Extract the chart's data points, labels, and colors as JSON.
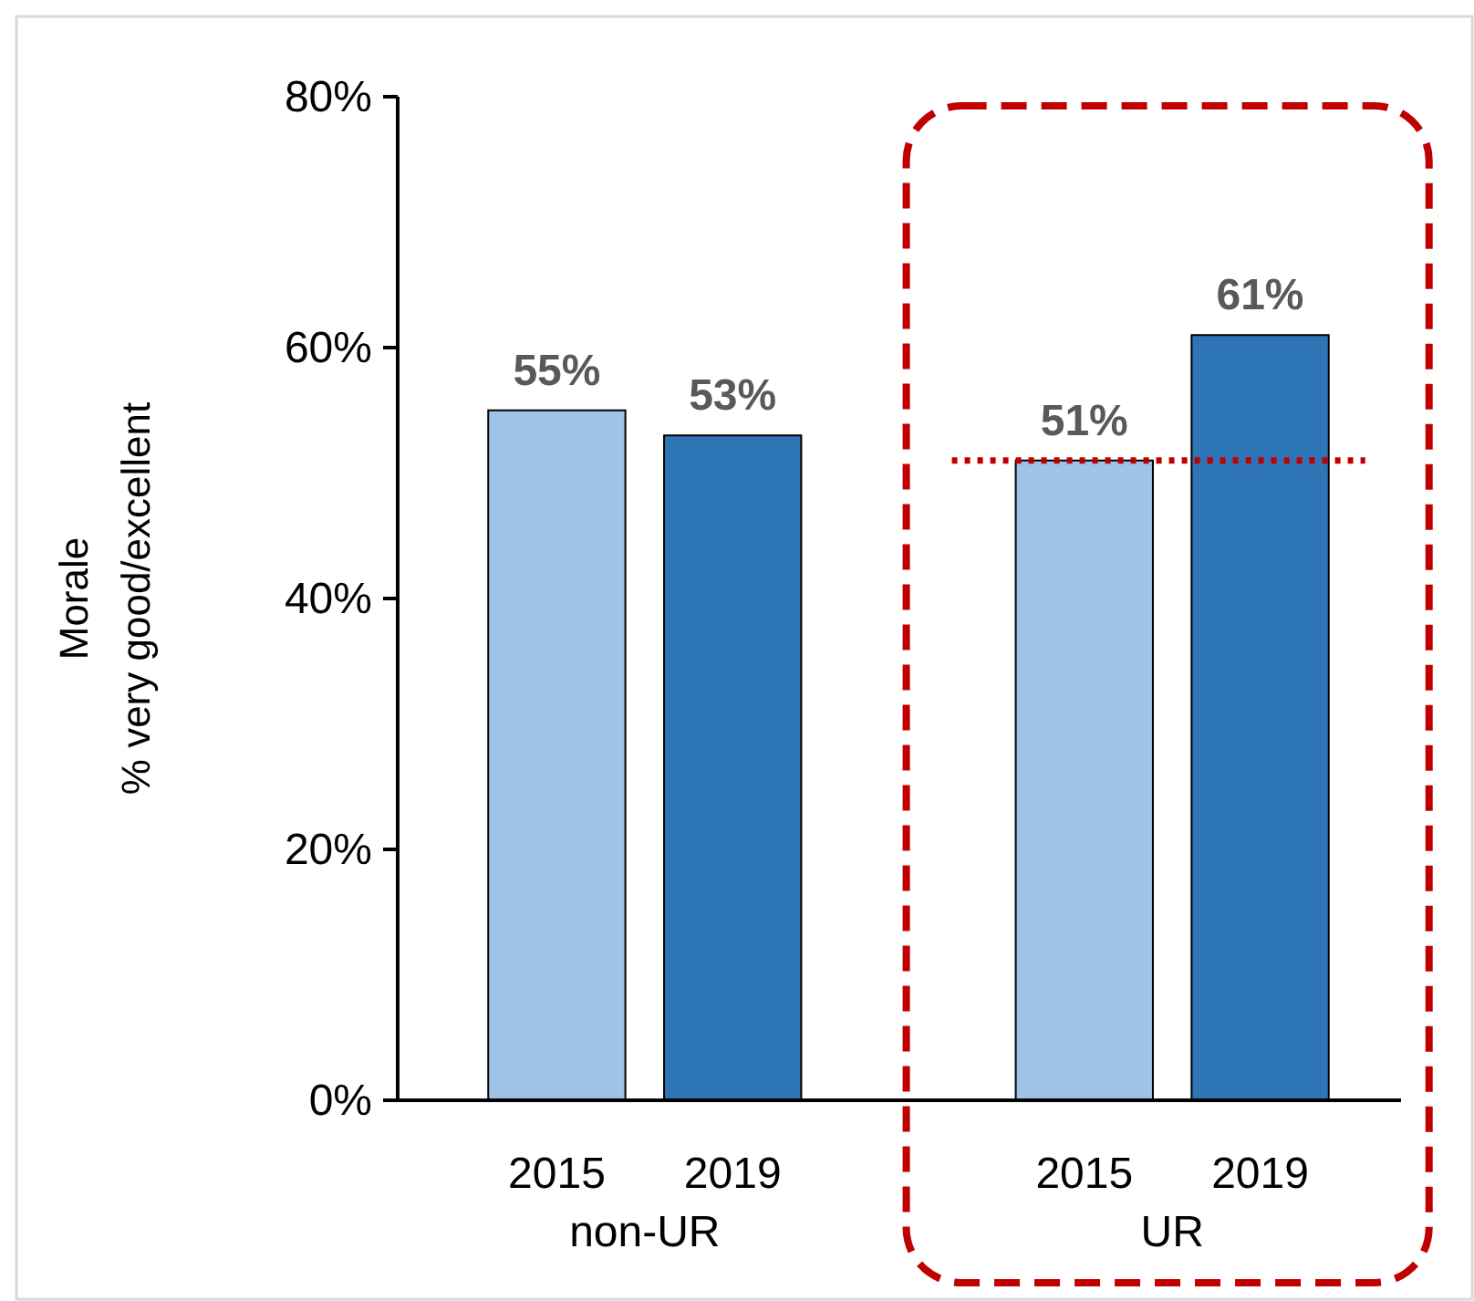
{
  "chart_data": {
    "type": "bar",
    "ylabel": "Morale\n% very good/excellent",
    "categories": [
      "2015",
      "2019",
      null,
      "2015",
      "2019"
    ],
    "values": [
      55,
      53,
      null,
      51,
      61
    ],
    "colors": [
      "#9dc3e6",
      "#2e75b6",
      null,
      "#9dc3e6",
      "#2e75b6"
    ],
    "ylim": [
      0,
      80
    ],
    "yticks": [
      {
        "value": 0,
        "label": "0%"
      },
      {
        "value": 20,
        "label": "20%"
      },
      {
        "value": 40,
        "label": "40%"
      },
      {
        "value": 60,
        "label": "60%"
      },
      {
        "value": 80,
        "label": "80%"
      }
    ],
    "value_labels": [
      "55%",
      "53%",
      null,
      "51%",
      "61%"
    ],
    "grid": false,
    "annotations": [
      "non-UR",
      "UR"
    ],
    "ref_lines": [
      {
        "axis": "y",
        "value": 51,
        "color": "#c00000",
        "line_style": "dotted"
      }
    ]
  }
}
